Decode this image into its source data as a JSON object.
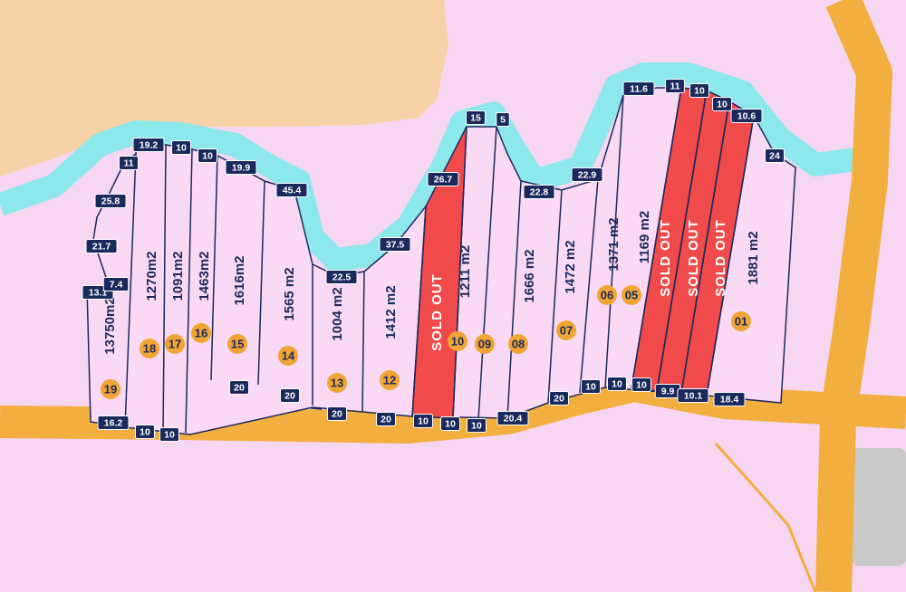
{
  "plots": [
    {
      "number": "19",
      "area": "13750m2"
    },
    {
      "number": "18",
      "area": "1270m2"
    },
    {
      "number": "17",
      "area": "1091m2"
    },
    {
      "number": "16",
      "area": "1463m2"
    },
    {
      "number": "15",
      "area": "1616m2"
    },
    {
      "number": "14",
      "area": "1565 m2"
    },
    {
      "number": "13",
      "area": "1004 m2"
    },
    {
      "number": "12",
      "area": "1412 m2"
    },
    {
      "number": "10",
      "area": "1211 m2"
    },
    {
      "number": "09"
    },
    {
      "number": "08",
      "area": "1666 m2"
    },
    {
      "number": "07",
      "area": "1472 m2"
    },
    {
      "number": "06",
      "area": "1371 m2"
    },
    {
      "number": "05",
      "area": "1169 m2"
    },
    {
      "number": "01",
      "area": "1881 m2"
    }
  ],
  "sold_labels": [
    "SOLD OUT",
    "SOLD OUT",
    "SOLD OUT",
    "SOLD OUT"
  ],
  "dimensions": [
    "13.1",
    "7.4",
    "21.7",
    "25.8",
    "11",
    "19.2",
    "10",
    "10",
    "19.9",
    "45.4",
    "22.5",
    "37.5",
    "26.7",
    "15",
    "5",
    "22.8",
    "22.9",
    "11.6",
    "11",
    "10",
    "10",
    "10.6",
    "24",
    "20.4",
    "20",
    "10",
    "10",
    "10",
    "9.9",
    "10.1",
    "18.4",
    "10",
    "10",
    "10",
    "20",
    "20",
    "20",
    "20",
    "10",
    "10",
    "16.2"
  ]
}
